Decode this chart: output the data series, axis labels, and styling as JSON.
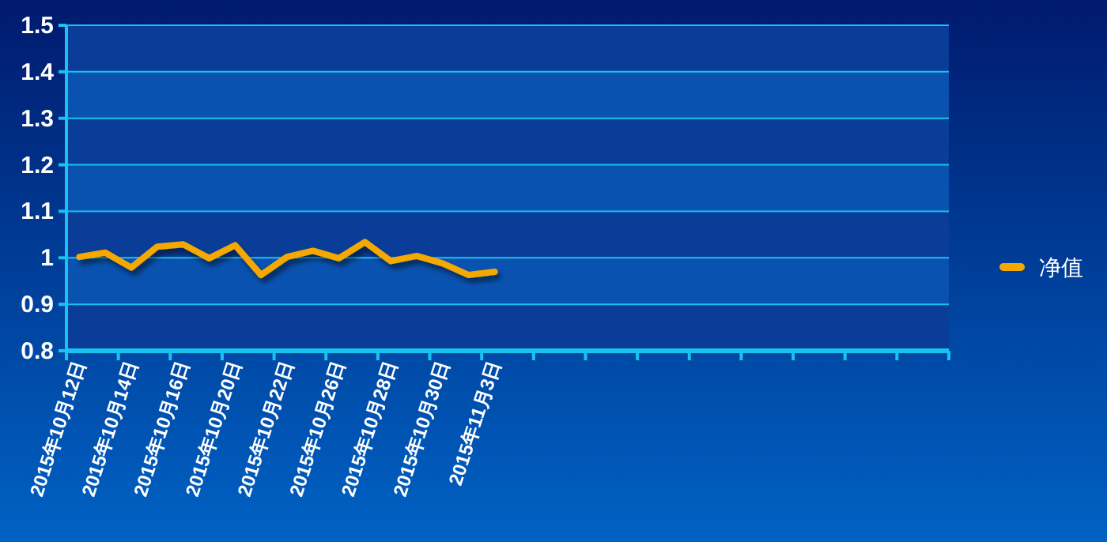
{
  "chart_data": {
    "type": "line",
    "categories": [
      "2015年10月12日",
      null,
      "2015年10月14日",
      null,
      "2015年10月16日",
      null,
      "2015年10月20日",
      null,
      "2015年10月22日",
      null,
      "2015年10月26日",
      null,
      "2015年10月28日",
      null,
      "2015年10月30日",
      null,
      "2015年11月3日",
      null,
      null,
      null,
      null,
      null,
      null,
      null,
      null,
      null,
      null,
      null,
      null,
      null,
      null,
      null,
      null,
      null
    ],
    "series": [
      {
        "name": "净值",
        "color": "#f5a800",
        "values": [
          1.002,
          1.011,
          0.979,
          1.024,
          1.029,
          0.999,
          1.027,
          0.963,
          1.002,
          1.015,
          0.999,
          1.034,
          0.993,
          1.004,
          0.988,
          0.963,
          0.97,
          null,
          null,
          null,
          null,
          null,
          null,
          null,
          null,
          null,
          null,
          null,
          null,
          null,
          null,
          null,
          null,
          null
        ]
      }
    ],
    "ylim": [
      0.8,
      1.5
    ],
    "yticks": [
      0.8,
      0.9,
      1,
      1.1,
      1.2,
      1.3,
      1.4,
      1.5
    ],
    "grid": "y",
    "legend": "right",
    "bands": [
      {
        "axis": "y",
        "from": 0.8,
        "to": 0.9,
        "color": "#0a3d98"
      },
      {
        "axis": "y",
        "from": 0.9,
        "to": 1,
        "color": "#0a52b0"
      },
      {
        "axis": "y",
        "from": 1,
        "to": 1.1,
        "color": "#0a3d98"
      },
      {
        "axis": "y",
        "from": 1.1,
        "to": 1.2,
        "color": "#0a52b0"
      },
      {
        "axis": "y",
        "from": 1.2,
        "to": 1.3,
        "color": "#0a3d98"
      },
      {
        "axis": "y",
        "from": 1.3,
        "to": 1.4,
        "color": "#0a52b0"
      },
      {
        "axis": "y",
        "from": 1.4,
        "to": 1.5,
        "color": "#0a3d98"
      }
    ]
  }
}
